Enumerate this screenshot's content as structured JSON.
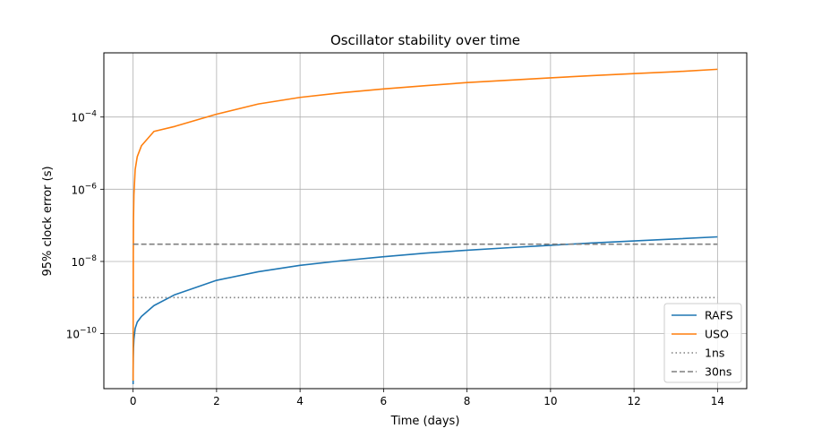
{
  "chart_data": {
    "type": "line",
    "title": "Oscillator stability over time",
    "xlabel": "Time (days)",
    "ylabel": "95% clock error (s)",
    "xlim": [
      -0.7,
      14.7
    ],
    "ylim": [
      3e-12,
      0.006
    ],
    "yscale": "log",
    "grid": true,
    "legend_position": "lower-right",
    "xticks": [
      0,
      2,
      4,
      6,
      8,
      10,
      12,
      14
    ],
    "xtick_labels": [
      "0",
      "2",
      "4",
      "6",
      "8",
      "10",
      "12",
      "14"
    ],
    "yticks": [
      1e-10,
      1e-08,
      1e-06,
      0.0001
    ],
    "ytick_bases": [
      "10",
      "10",
      "10",
      "10"
    ],
    "ytick_exponents": [
      "−10",
      "−8",
      "−6",
      "−4"
    ],
    "series": [
      {
        "name": "RAFS",
        "color": "#1f77b4",
        "style": "solid",
        "x": [
          0.001,
          0.002,
          0.005,
          0.01,
          0.02,
          0.05,
          0.1,
          0.2,
          0.5,
          1,
          2,
          3,
          4,
          5,
          6,
          7,
          8,
          9,
          10,
          11,
          12,
          13,
          14
        ],
        "y": [
          4e-12,
          1e-11,
          2.2e-11,
          4e-11,
          7e-11,
          1.4e-10,
          2.1e-10,
          3e-10,
          6e-10,
          1.2e-09,
          3e-09,
          5.2e-09,
          7.8e-09,
          1.05e-08,
          1.35e-08,
          1.7e-08,
          2.05e-08,
          2.4e-08,
          2.8e-08,
          3.25e-08,
          3.7e-08,
          4.2e-08,
          4.8e-08
        ]
      },
      {
        "name": "USO",
        "color": "#ff7f0e",
        "style": "solid",
        "x": [
          0.001,
          0.002,
          0.005,
          0.01,
          0.02,
          0.05,
          0.1,
          0.2,
          0.5,
          1,
          2,
          3,
          4,
          5,
          6,
          7,
          8,
          9,
          10,
          11,
          12,
          13,
          14
        ],
        "y": [
          5e-12,
          1e-10,
          1.5e-08,
          1.5e-07,
          7e-07,
          3.5e-06,
          8e-06,
          1.6e-05,
          4e-05,
          5.5e-05,
          0.00012,
          0.00023,
          0.00035,
          0.00047,
          0.0006,
          0.00074,
          0.0009,
          0.00105,
          0.00122,
          0.0014,
          0.0016,
          0.0018,
          0.0021
        ]
      },
      {
        "name": "1ns",
        "color": "#7f7f7f",
        "style": "dotted",
        "x": [
          0,
          14
        ],
        "y": [
          1e-09,
          1e-09
        ]
      },
      {
        "name": "30ns",
        "color": "#7f7f7f",
        "style": "dashed",
        "x": [
          0,
          14
        ],
        "y": [
          3e-08,
          3e-08
        ]
      }
    ]
  }
}
